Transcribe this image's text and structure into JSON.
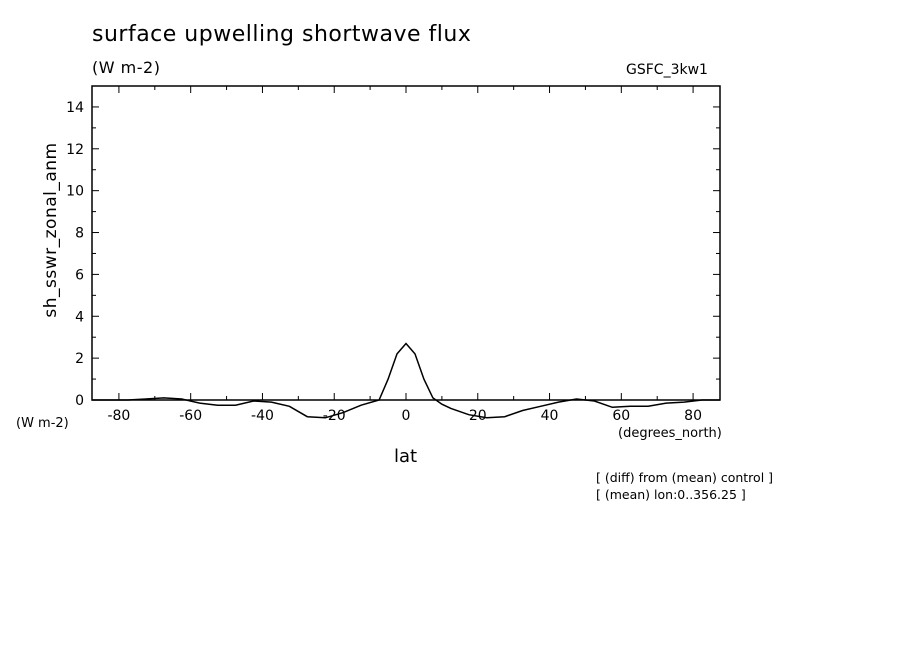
{
  "chart_data": {
    "type": "line",
    "title": "surface upwelling shortwave flux",
    "units": "(W m-2)",
    "model": "GSFC_3kw1",
    "ylabel": "sh_sswr_zonal_anm",
    "yunits": "(W m-2)",
    "xlabel": "lat",
    "xunits": "(degrees_north)",
    "notes": [
      "[ (diff) from (mean) control ]",
      "[ (mean) lon:0..356.25 ]"
    ],
    "xlim": [
      -87.5,
      87.5
    ],
    "ylim": [
      0,
      15
    ],
    "xticks_major": [
      -80,
      -60,
      -40,
      -20,
      0,
      20,
      40,
      60,
      80
    ],
    "xtick_labels": [
      "-80",
      "-60",
      "-40",
      "-20",
      "0",
      "20",
      "40",
      "60",
      "80"
    ],
    "yticks_major": [
      0,
      2,
      4,
      6,
      8,
      10,
      12,
      14
    ],
    "ytick_labels": [
      "0",
      "2",
      "4",
      "6",
      "8",
      "10",
      "12",
      "14"
    ],
    "grid": false,
    "series": [
      {
        "x": [
          -87.5,
          -82.5,
          -77.5,
          -72.5,
          -67.5,
          -62.5,
          -57.5,
          -52.5,
          -47.5,
          -42.5,
          -37.5,
          -32.5,
          -27.5,
          -22.5,
          -17.5,
          -12.5,
          -7.5,
          -5,
          -2.5,
          0,
          2.5,
          5,
          7.5,
          10,
          12.5,
          17.5,
          22.5,
          27.5,
          32.5,
          37.5,
          42.5,
          47.5,
          52.5,
          57.5,
          62.5,
          67.5,
          72.5,
          77.5,
          82.5,
          87.5
        ],
        "y": [
          0.0,
          0.0,
          0.0,
          0.05,
          0.1,
          0.05,
          -0.15,
          -0.25,
          -0.25,
          -0.05,
          -0.1,
          -0.3,
          -0.8,
          -0.85,
          -0.6,
          -0.25,
          0.0,
          1.0,
          2.2,
          2.7,
          2.2,
          1.0,
          0.1,
          -0.2,
          -0.4,
          -0.7,
          -0.85,
          -0.8,
          -0.5,
          -0.3,
          -0.1,
          0.05,
          -0.05,
          -0.35,
          -0.3,
          -0.3,
          -0.15,
          -0.1,
          0.0,
          0.0
        ]
      }
    ]
  }
}
